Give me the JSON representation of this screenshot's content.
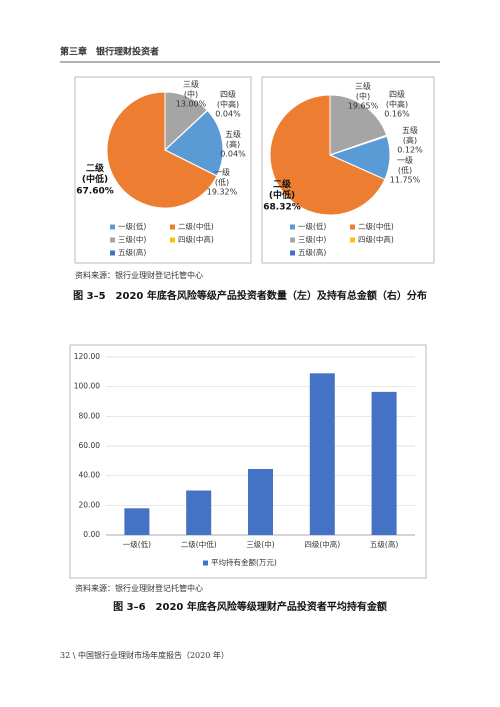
{
  "header": {
    "title": "第三章　银行理财投资者"
  },
  "chart_data": [
    {
      "type": "pie",
      "categories": [
        "一级(低)",
        "二级(中低)",
        "三级(中)",
        "四级(中高)",
        "五级(高)"
      ],
      "values": [
        19.32,
        67.6,
        13.0,
        0.04,
        0.04
      ],
      "value_labels": [
        "19.32%",
        "67.60%",
        "13.00%",
        "0.04%",
        "0.04%"
      ],
      "colors": [
        "#5b9bd5",
        "#ed7d31",
        "#a5a5a5",
        "#ffc000",
        "#4472c4"
      ]
    },
    {
      "type": "pie",
      "categories": [
        "一级(低)",
        "二级(中低)",
        "三级(中)",
        "四级(中高)",
        "五级(高)"
      ],
      "values": [
        11.75,
        68.32,
        19.65,
        0.16,
        0.12
      ],
      "value_labels": [
        "11.75%",
        "68.32%",
        "19.65%",
        "0.16%",
        "0.12%"
      ],
      "colors": [
        "#5b9bd5",
        "#ed7d31",
        "#a5a5a5",
        "#ffc000",
        "#4472c4"
      ]
    },
    {
      "type": "bar",
      "categories": [
        "一级(低)",
        "二级(中低)",
        "三级(中)",
        "四级(中高)",
        "五级(高)"
      ],
      "series": [
        {
          "name": "平均持有金额(万元)",
          "color": "#4472c4",
          "values": [
            18,
            30,
            44.5,
            109,
            96.5
          ]
        }
      ],
      "ylim": [
        0,
        120
      ],
      "yticks": [
        {
          "value": 0,
          "label": "0.00"
        },
        {
          "value": 20,
          "label": "20.00"
        },
        {
          "value": 40,
          "label": "40.00"
        },
        {
          "value": 60,
          "label": "60.00"
        },
        {
          "value": 80,
          "label": "80.00"
        },
        {
          "value": 100,
          "label": "100.00"
        },
        {
          "value": 120,
          "label": "120.00"
        }
      ],
      "grid": true,
      "legend": "bottom"
    }
  ],
  "figure_3_5": {
    "source": "资料来源：银行业理财登记托管中心",
    "caption": "图 3–5　2020 年底各风险等级产品投资者数量（左）及持有总金额（右）分布"
  },
  "figure_3_6": {
    "source": "资料来源：银行业理财登记托管中心",
    "caption": "图 3–6　2020 年底各风险等级理财产品投资者平均持有金额"
  },
  "footer": {
    "text": "32 \\ 中国银行业理财市场年度报告（2020 年）"
  }
}
